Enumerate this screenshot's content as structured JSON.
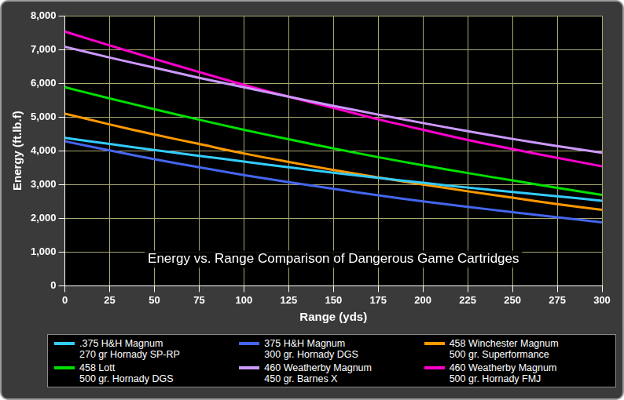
{
  "chart_data": {
    "type": "line",
    "title": "Energy vs. Range Comparison of Dangerous Game Cartridges",
    "x_label": "Range (yds)",
    "y_label": "Energy (ft.lb.f)",
    "x": [
      0,
      25,
      50,
      75,
      100,
      125,
      150,
      175,
      200,
      225,
      250,
      275,
      300
    ],
    "xlim": [
      0,
      300
    ],
    "xticks": [
      0,
      25,
      50,
      75,
      100,
      125,
      150,
      175,
      200,
      225,
      250,
      275,
      300
    ],
    "ylim": [
      0,
      8000
    ],
    "yticks": [
      0,
      1000,
      2000,
      3000,
      4000,
      5000,
      6000,
      7000,
      8000
    ],
    "grid": true,
    "legend": "bottom",
    "series": [
      {
        "name": ".375 H&H Magnum\n270 gr Hornady SP-RP",
        "color": "#33ccff",
        "values": [
          4380,
          4200,
          4020,
          3850,
          3680,
          3510,
          3350,
          3200,
          3050,
          2910,
          2780,
          2650,
          2520
        ]
      },
      {
        "name": "375 H&H Magnum\n300 gr. Hornady DGS",
        "color": "#4466ee",
        "values": [
          4280,
          4010,
          3750,
          3510,
          3280,
          3070,
          2870,
          2680,
          2500,
          2340,
          2180,
          2030,
          1880
        ]
      },
      {
        "name": "458 Winchester Magnum\n500 gr. Superformance",
        "color": "#ff9900",
        "values": [
          5100,
          4780,
          4480,
          4200,
          3920,
          3670,
          3430,
          3210,
          3000,
          2800,
          2610,
          2420,
          2250
        ]
      },
      {
        "name": "458 Lott\n500 gr. Hornady DGS",
        "color": "#00e000",
        "values": [
          5880,
          5550,
          5230,
          4920,
          4620,
          4340,
          4070,
          3810,
          3570,
          3340,
          3120,
          2900,
          2690
        ]
      },
      {
        "name": "460 Weatherby Magnum\n450 gr. Barnes X",
        "color": "#cc99ff",
        "values": [
          7080,
          6760,
          6460,
          6160,
          5880,
          5600,
          5330,
          5070,
          4820,
          4580,
          4350,
          4140,
          3940
        ]
      },
      {
        "name": "460 Weatherby Magnum\n500 gr. Hornady FMJ",
        "color": "#ff00cc",
        "values": [
          7530,
          7120,
          6720,
          6330,
          5950,
          5600,
          5270,
          4930,
          4620,
          4320,
          4050,
          3790,
          3540
        ]
      }
    ]
  }
}
